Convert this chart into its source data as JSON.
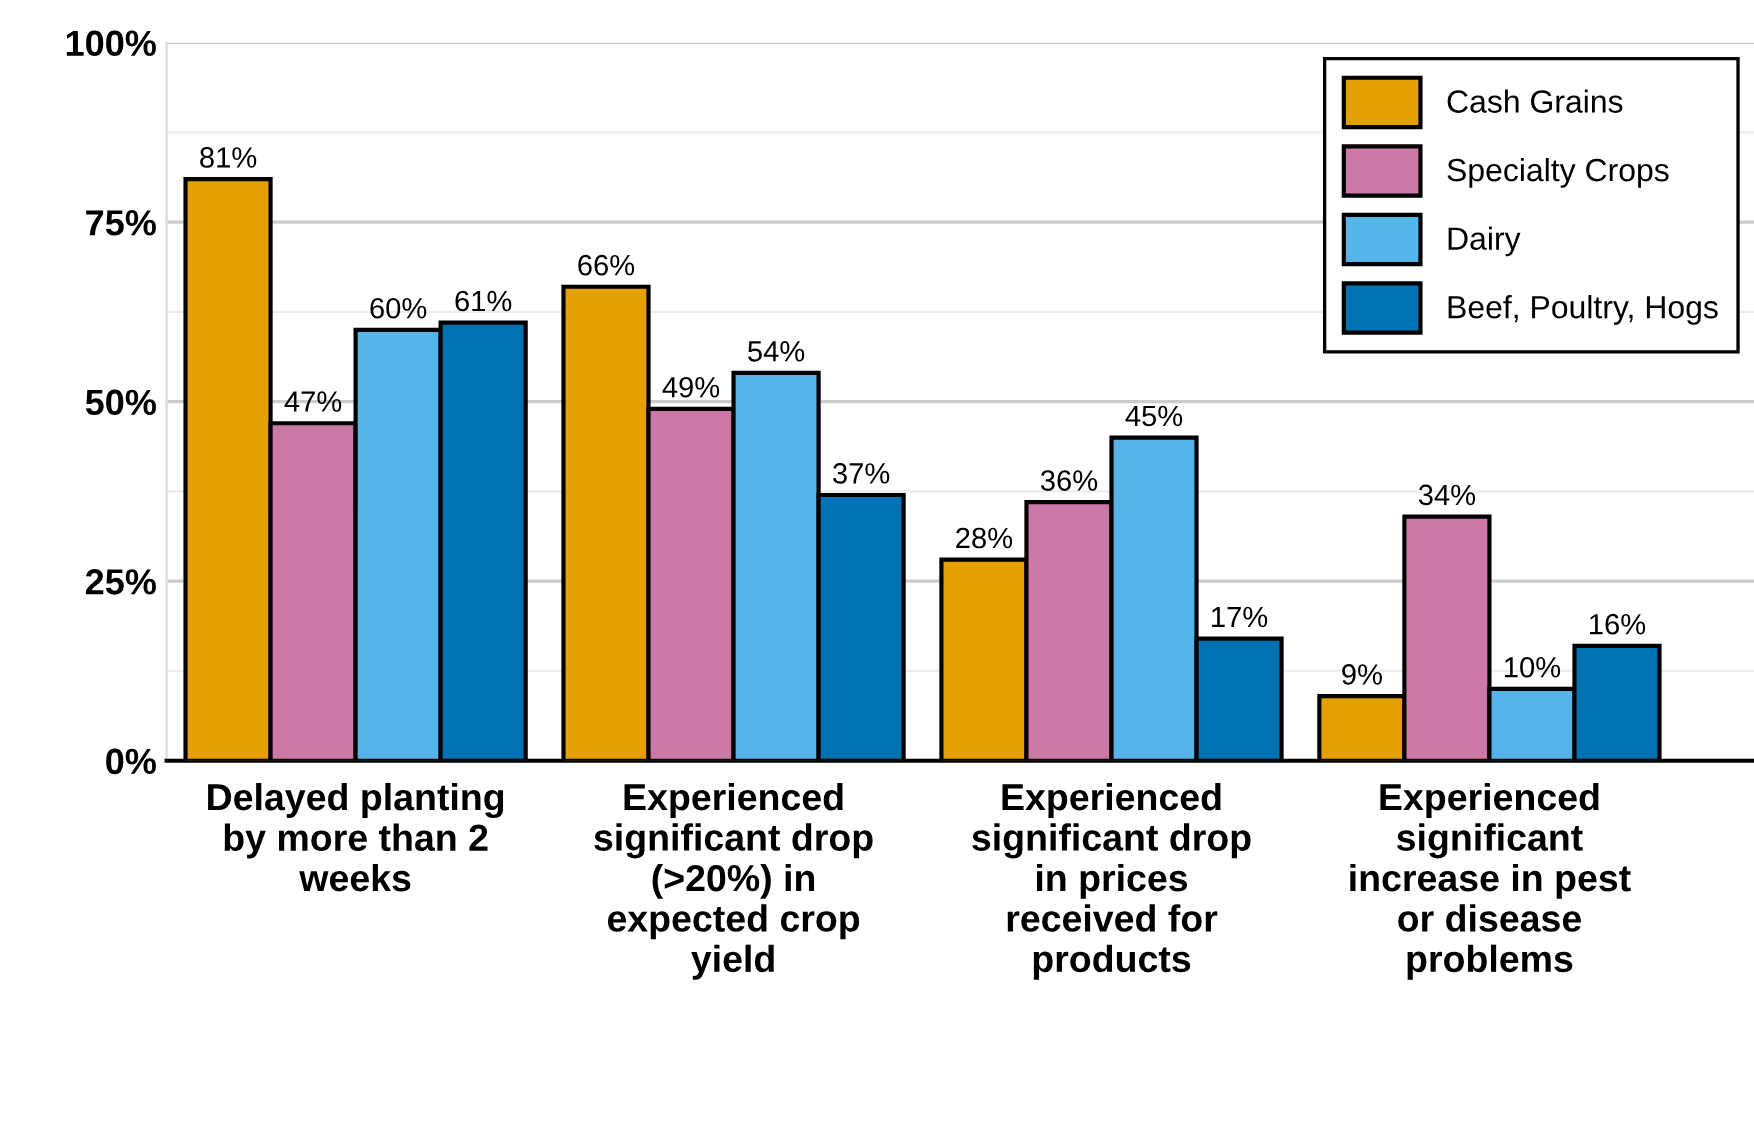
{
  "chart_data": {
    "type": "bar",
    "categories": [
      "Delayed planting by more than 2 weeks",
      "Experienced significant drop (>20%) in expected crop yield",
      "Experienced significant drop in prices received for products",
      "Experienced significant increase in pest or disease problems"
    ],
    "series": [
      {
        "name": "Cash Grains",
        "color": "#e69f00",
        "values": [
          81,
          66,
          28,
          9
        ],
        "value_labels": [
          "81%",
          "66%",
          "28%",
          "9%"
        ]
      },
      {
        "name": "Specialty Crops",
        "color": "#cc79a7",
        "values": [
          47,
          49,
          36,
          34
        ],
        "value_labels": [
          "47%",
          "49%",
          "36%",
          "34%"
        ]
      },
      {
        "name": "Dairy",
        "color": "#56b4e9",
        "values": [
          60,
          54,
          45,
          10
        ],
        "value_labels": [
          "60%",
          "54%",
          "45%",
          "10%"
        ]
      },
      {
        "name": "Beef, Poultry, Hogs",
        "color": "#0072b2",
        "values": [
          61,
          37,
          17,
          16
        ],
        "value_labels": [
          "61%",
          "37%",
          "17%",
          "16%"
        ]
      }
    ],
    "ylim": [
      0,
      100
    ],
    "yticks": [
      {
        "value": 0,
        "label": "0%"
      },
      {
        "value": 25,
        "label": "25%"
      },
      {
        "value": 50,
        "label": "50%"
      },
      {
        "value": 75,
        "label": "75%"
      },
      {
        "value": 100,
        "label": "100%"
      }
    ],
    "grid": "y",
    "legend": "top right"
  }
}
